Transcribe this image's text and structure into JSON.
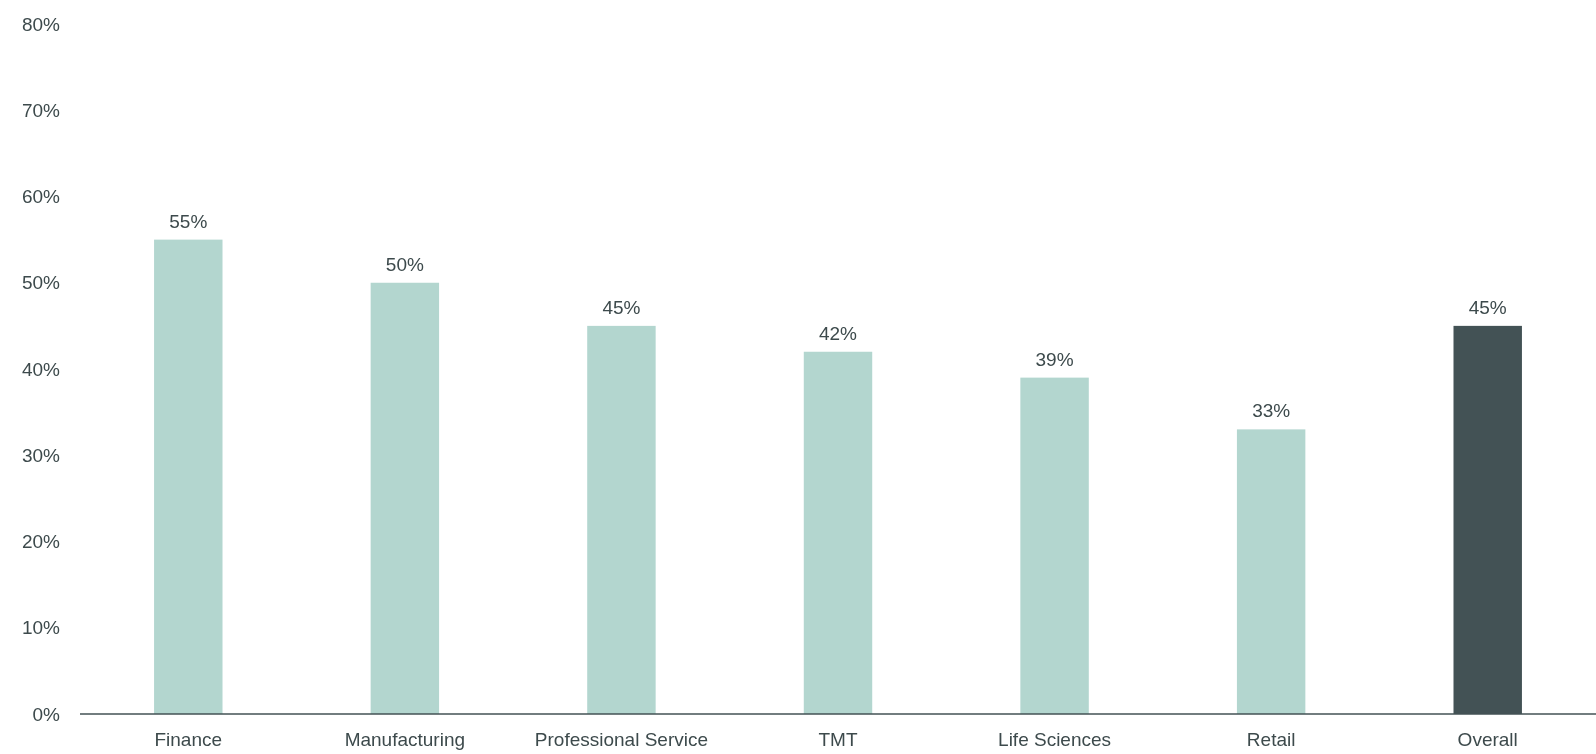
{
  "chart_data": {
    "type": "bar",
    "categories": [
      "Finance",
      "Manufacturing",
      "Professional Service",
      "TMT",
      "Life Sciences",
      "Retail",
      "Overall"
    ],
    "values": [
      55,
      50,
      45,
      42,
      39,
      33,
      45
    ],
    "colors": [
      "#b3d6cf",
      "#b3d6cf",
      "#b3d6cf",
      "#b3d6cf",
      "#b3d6cf",
      "#b3d6cf",
      "#435255"
    ],
    "ylim": [
      0,
      80
    ],
    "yticks": [
      {
        "value": 0,
        "label": "0%"
      },
      {
        "value": 10,
        "label": "10%"
      },
      {
        "value": 20,
        "label": "20%"
      },
      {
        "value": 30,
        "label": "30%"
      },
      {
        "value": 40,
        "label": "40%"
      },
      {
        "value": 50,
        "label": "50%"
      },
      {
        "value": 60,
        "label": "60%"
      },
      {
        "value": 70,
        "label": "70%"
      },
      {
        "value": 80,
        "label": "80%"
      }
    ],
    "value_labels": [
      "55%",
      "50%",
      "45%",
      "42%",
      "39%",
      "33%",
      "45%"
    ],
    "grid": false
  }
}
